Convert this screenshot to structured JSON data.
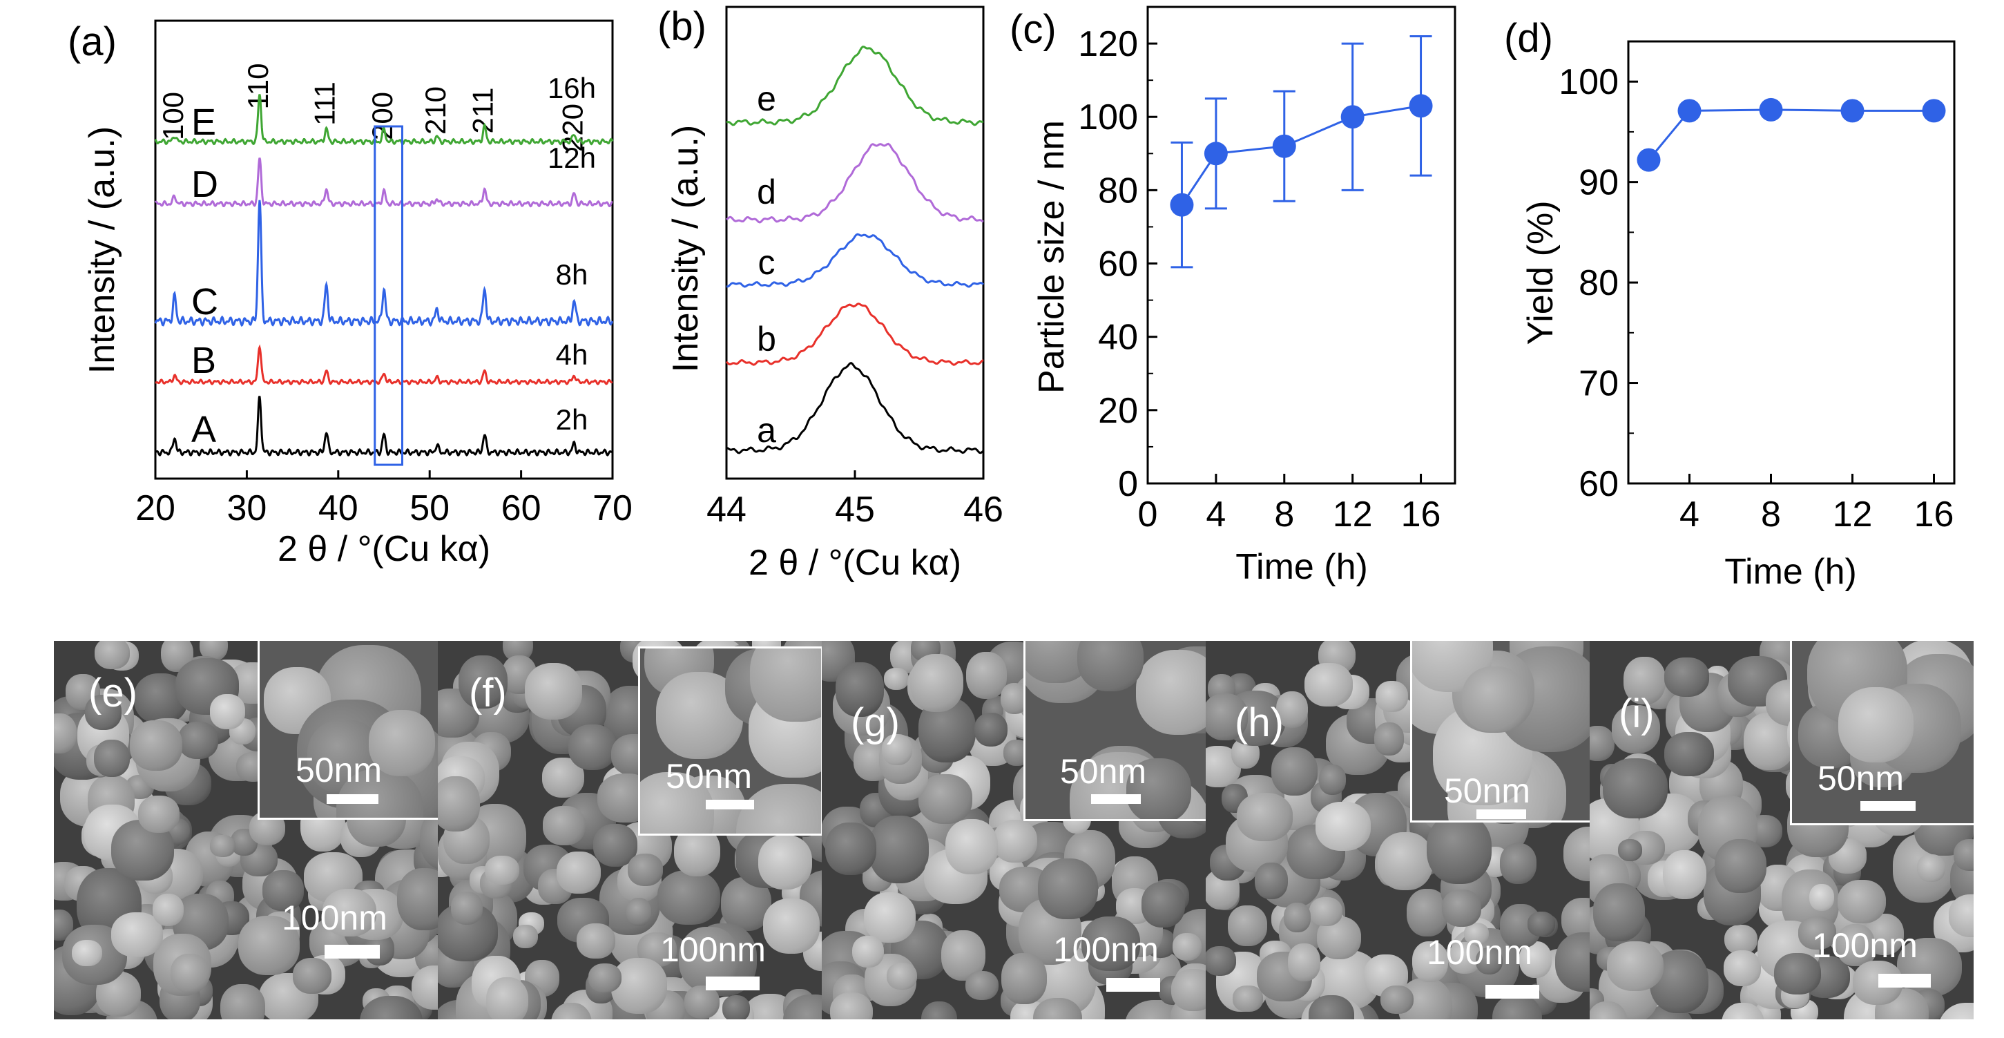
{
  "colors": {
    "A": "#000000",
    "B": "#e8302a",
    "C": "#2f62e6",
    "D": "#b06ad8",
    "E": "#3fa633",
    "marker": "#2f62e6",
    "box": "#2f62e6"
  },
  "chart_data": [
    {
      "type": "line",
      "panel_label": "(a)",
      "xlabel": "2 θ / °(Cu kα)",
      "ylabel": "Intensity / (a.u.)",
      "xlim": [
        20,
        70
      ],
      "xticks": [
        20,
        30,
        40,
        50,
        60,
        70
      ],
      "peaks_2theta": [
        22.1,
        31.4,
        38.7,
        45.0,
        50.8,
        56.0,
        65.8
      ],
      "peak_labels": [
        "100",
        "110",
        "111",
        "200",
        "210",
        "211",
        "220"
      ],
      "highlight_range": [
        44,
        47
      ],
      "series": [
        {
          "letter": "A",
          "time": "2h",
          "peak_heights": [
            0.25,
            0.95,
            0.35,
            0.3,
            0.12,
            0.3,
            0.15
          ]
        },
        {
          "letter": "B",
          "time": "4h",
          "peak_heights": [
            0.15,
            0.85,
            0.25,
            0.2,
            0.1,
            0.25,
            0.15
          ]
        },
        {
          "letter": "C",
          "time": "8h",
          "peak_heights": [
            0.3,
            1.5,
            0.45,
            0.4,
            0.15,
            0.4,
            0.25
          ]
        },
        {
          "letter": "D",
          "time": "12h",
          "peak_heights": [
            0.15,
            0.9,
            0.3,
            0.25,
            0.1,
            0.3,
            0.2
          ]
        },
        {
          "letter": "E",
          "time": "16h",
          "peak_heights": [
            0.12,
            0.95,
            0.25,
            0.25,
            0.1,
            0.3,
            0.15
          ]
        }
      ]
    },
    {
      "type": "line",
      "panel_label": "(b)",
      "xlabel": "2 θ / °(Cu kα)",
      "ylabel": "Intensity / (a.u.)",
      "xlim": [
        44,
        46
      ],
      "xticks": [
        "44",
        "45",
        "46"
      ],
      "series": [
        {
          "letter": "a",
          "peak_center": 44.97,
          "peak_height": 1.2
        },
        {
          "letter": "b",
          "peak_center": 45.0,
          "peak_height": 0.95
        },
        {
          "letter": "c",
          "peak_center": 45.08,
          "peak_height": 0.85
        },
        {
          "letter": "d",
          "peak_center": 45.2,
          "peak_height": 1.1
        },
        {
          "letter": "e",
          "peak_center": 45.1,
          "peak_height": 1.05
        }
      ]
    },
    {
      "type": "scatter",
      "panel_label": "(c)",
      "xlabel": "Time (h)",
      "ylabel": "Particle size / nm",
      "xlim": [
        0,
        18
      ],
      "ylim": [
        0,
        130
      ],
      "xticks": [
        0,
        4,
        8,
        12,
        16
      ],
      "yticks": [
        0,
        20,
        40,
        60,
        80,
        100,
        120
      ],
      "x": [
        2,
        4,
        8,
        12,
        16
      ],
      "y": [
        76,
        90,
        92,
        100,
        103
      ],
      "yerr": [
        17,
        15,
        15,
        20,
        19
      ]
    },
    {
      "type": "scatter",
      "panel_label": "(d)",
      "xlabel": "Time (h)",
      "ylabel": "Yield (%)",
      "xlim": [
        1,
        17
      ],
      "ylim": [
        60,
        104
      ],
      "xticks": [
        4,
        8,
        12,
        16
      ],
      "yticks": [
        60,
        70,
        80,
        90,
        100
      ],
      "x": [
        2,
        4,
        8,
        12,
        16
      ],
      "y": [
        92.2,
        97.1,
        97.2,
        97.1,
        97.1
      ]
    }
  ],
  "sem_panels": [
    {
      "label": "(e)",
      "inset_scale": "50nm",
      "main_scale": "100nm"
    },
    {
      "label": "(f)",
      "inset_scale": "50nm",
      "main_scale": "100nm"
    },
    {
      "label": "(g)",
      "inset_scale": "50nm",
      "main_scale": "100nm"
    },
    {
      "label": "(h)",
      "inset_scale": "50nm",
      "main_scale": "100nm"
    },
    {
      "label": "(i)",
      "inset_scale": "50nm",
      "main_scale": "100nm"
    }
  ]
}
